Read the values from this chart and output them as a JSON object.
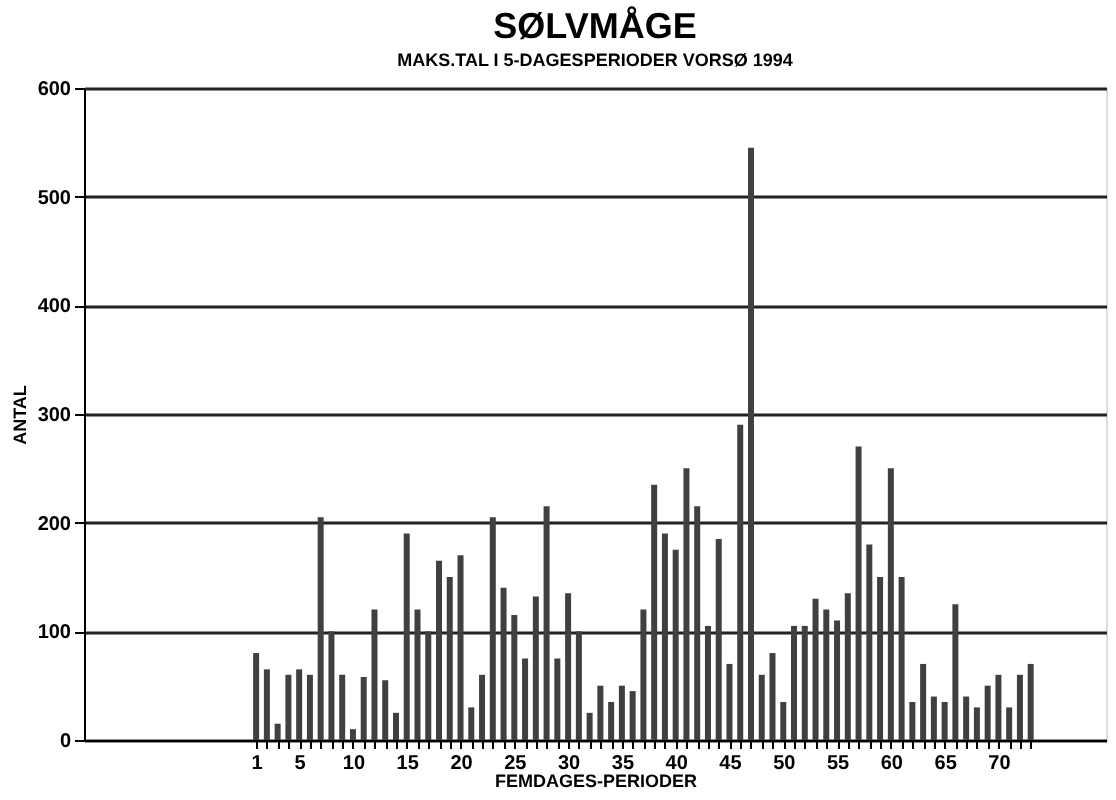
{
  "chart_data": {
    "type": "bar",
    "title": "SØLVMÅGE",
    "subtitle": "MAKS.TAL I 5-DAGESPERIODER VORSØ 1994",
    "xlabel": "FEMDAGES-PERIODER",
    "ylabel": "ANTAL",
    "x": [
      1,
      2,
      3,
      4,
      5,
      6,
      7,
      8,
      9,
      10,
      11,
      12,
      13,
      14,
      15,
      16,
      17,
      18,
      19,
      20,
      21,
      22,
      23,
      24,
      25,
      26,
      27,
      28,
      29,
      30,
      31,
      32,
      33,
      34,
      35,
      36,
      37,
      38,
      39,
      40,
      41,
      42,
      43,
      44,
      45,
      46,
      47,
      48,
      49,
      50,
      51,
      52,
      53,
      54,
      55,
      56,
      57,
      58,
      59,
      60,
      61,
      62,
      63,
      64,
      65,
      66,
      67,
      68,
      69,
      70,
      71,
      72,
      73
    ],
    "values": [
      80,
      65,
      15,
      60,
      65,
      60,
      205,
      100,
      60,
      10,
      58,
      120,
      55,
      25,
      190,
      120,
      100,
      165,
      150,
      170,
      30,
      60,
      205,
      140,
      115,
      75,
      132,
      215,
      75,
      135,
      100,
      25,
      50,
      35,
      50,
      45,
      120,
      235,
      190,
      175,
      250,
      215,
      105,
      185,
      70,
      290,
      545,
      60,
      80,
      35,
      105,
      105,
      130,
      120,
      110,
      135,
      270,
      180,
      150,
      250,
      150,
      35,
      70,
      40,
      35,
      125,
      40,
      30,
      50,
      60,
      30,
      60,
      70
    ],
    "color": "#404040",
    "xlim": [
      -15,
      80
    ],
    "xticks": [
      1,
      {
        "value": 2,
        "label": null
      },
      {
        "value": 3,
        "label": null
      },
      {
        "value": 4,
        "label": null
      },
      5,
      {
        "value": 6,
        "label": null
      },
      {
        "value": 7,
        "label": null
      },
      {
        "value": 8,
        "label": null
      },
      {
        "value": 9,
        "label": null
      },
      10,
      {
        "value": 11,
        "label": null
      },
      {
        "value": 12,
        "label": null
      },
      {
        "value": 13,
        "label": null
      },
      {
        "value": 14,
        "label": null
      },
      15,
      {
        "value": 16,
        "label": null
      },
      {
        "value": 17,
        "label": null
      },
      {
        "value": 18,
        "label": null
      },
      {
        "value": 19,
        "label": null
      },
      20,
      {
        "value": 21,
        "label": null
      },
      {
        "value": 22,
        "label": null
      },
      {
        "value": 23,
        "label": null
      },
      {
        "value": 24,
        "label": null
      },
      25,
      {
        "value": 26,
        "label": null
      },
      {
        "value": 27,
        "label": null
      },
      {
        "value": 28,
        "label": null
      },
      {
        "value": 29,
        "label": null
      },
      30,
      {
        "value": 31,
        "label": null
      },
      {
        "value": 32,
        "label": null
      },
      {
        "value": 33,
        "label": null
      },
      {
        "value": 34,
        "label": null
      },
      35,
      {
        "value": 36,
        "label": null
      },
      {
        "value": 37,
        "label": null
      },
      {
        "value": 38,
        "label": null
      },
      {
        "value": 39,
        "label": null
      },
      40,
      {
        "value": 41,
        "label": null
      },
      {
        "value": 42,
        "label": null
      },
      {
        "value": 43,
        "label": null
      },
      {
        "value": 44,
        "label": null
      },
      45,
      {
        "value": 46,
        "label": null
      },
      {
        "value": 47,
        "label": null
      },
      {
        "value": 48,
        "label": null
      },
      {
        "value": 49,
        "label": null
      },
      50,
      {
        "value": 51,
        "label": null
      },
      {
        "value": 52,
        "label": null
      },
      {
        "value": 53,
        "label": null
      },
      {
        "value": 54,
        "label": null
      },
      55,
      {
        "value": 56,
        "label": null
      },
      {
        "value": 57,
        "label": null
      },
      {
        "value": 58,
        "label": null
      },
      {
        "value": 59,
        "label": null
      },
      60,
      {
        "value": 61,
        "label": null
      },
      {
        "value": 62,
        "label": null
      },
      {
        "value": 63,
        "label": null
      },
      {
        "value": 64,
        "label": null
      },
      65,
      {
        "value": 66,
        "label": null
      },
      {
        "value": 67,
        "label": null
      },
      {
        "value": 68,
        "label": null
      },
      {
        "value": 69,
        "label": null
      },
      70,
      {
        "value": 71,
        "label": null
      },
      {
        "value": 72,
        "label": null
      },
      {
        "value": 73,
        "label": null
      }
    ],
    "ylim": [
      0,
      600
    ],
    "yticks": [
      0,
      100,
      200,
      300,
      400,
      500,
      600
    ],
    "grid": "y"
  }
}
